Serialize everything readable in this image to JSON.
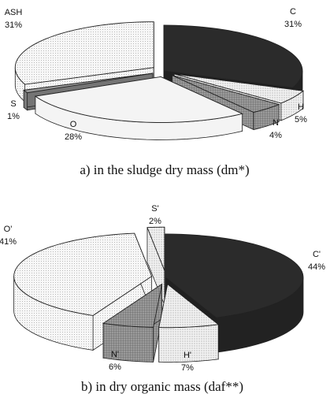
{
  "chart_data": [
    {
      "type": "pie",
      "caption": "a) in the sludge dry mass (dm*)",
      "slices": [
        {
          "name": "C",
          "value": 31,
          "label": "31%",
          "color": "#2b2b2b",
          "pattern": "solid",
          "exploded": false
        },
        {
          "name": "H",
          "value": 5,
          "label": "5%",
          "color": "#e6e6e6",
          "pattern": "fine-dots",
          "exploded": true
        },
        {
          "name": "N",
          "value": 4,
          "label": "4%",
          "color": "#8c8c8c",
          "pattern": "grid",
          "exploded": true
        },
        {
          "name": "O",
          "value": 28,
          "label": "28%",
          "color": "#f4f4f4",
          "pattern": "white",
          "exploded": true
        },
        {
          "name": "S",
          "value": 1,
          "label": "1%",
          "color": "#9a9a9a",
          "pattern": "solid",
          "exploded": true
        },
        {
          "name": "ASH",
          "value": 31,
          "label": "31%",
          "color": "#eeeeee",
          "pattern": "dots",
          "exploded": true
        }
      ]
    },
    {
      "type": "pie",
      "caption": "b) in dry organic mass (daf**)",
      "slices": [
        {
          "name": "C'",
          "value": 44,
          "label": "44%",
          "color": "#2b2b2b",
          "pattern": "solid",
          "exploded": false
        },
        {
          "name": "H'",
          "value": 7,
          "label": "7%",
          "color": "#e6e6e6",
          "pattern": "fine-dots",
          "exploded": true
        },
        {
          "name": "N'",
          "value": 6,
          "label": "6%",
          "color": "#8c8c8c",
          "pattern": "grid",
          "exploded": true
        },
        {
          "name": "O'",
          "value": 41,
          "label": "41%",
          "color": "#f4f4f4",
          "pattern": "dots",
          "exploded": true
        },
        {
          "name": "S'",
          "value": 2,
          "label": "2%",
          "color": "#e0e0e0",
          "pattern": "fine-dots",
          "exploded": true
        }
      ]
    }
  ]
}
